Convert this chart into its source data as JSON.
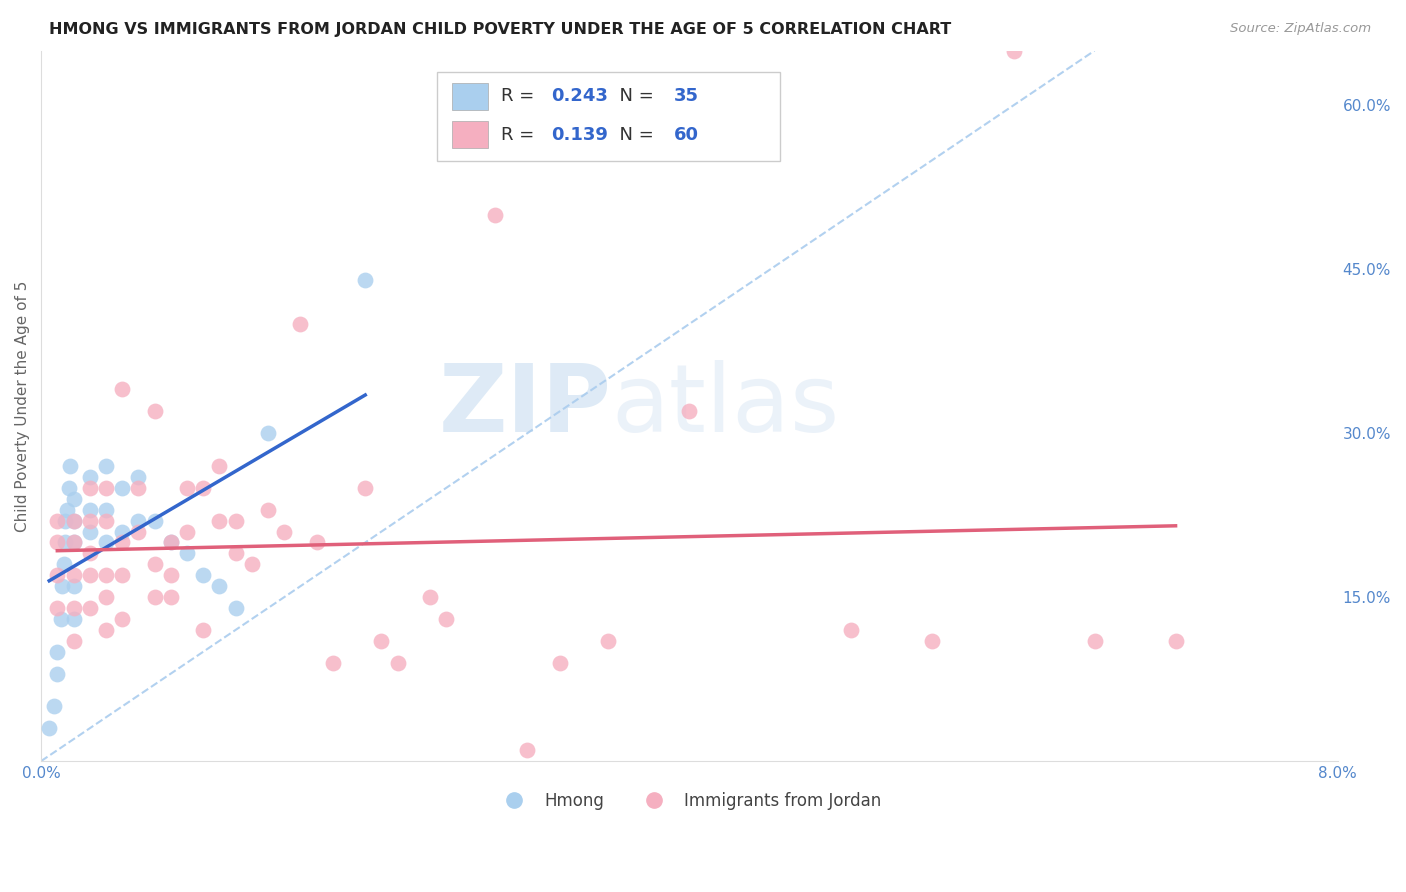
{
  "title": "HMONG VS IMMIGRANTS FROM JORDAN CHILD POVERTY UNDER THE AGE OF 5 CORRELATION CHART",
  "source": "Source: ZipAtlas.com",
  "ylabel": "Child Poverty Under the Age of 5",
  "xlim": [
    0.0,
    0.08
  ],
  "ylim": [
    0.0,
    0.65
  ],
  "hmong_R": 0.243,
  "hmong_N": 35,
  "jordan_R": 0.139,
  "jordan_N": 60,
  "hmong_color": "#aacfee",
  "jordan_color": "#f5afc0",
  "hmong_line_color": "#3366cc",
  "jordan_line_color": "#e0607a",
  "dash_color": "#aaccee",
  "background_color": "#ffffff",
  "grid_color": "#cccccc",
  "hmong_x": [
    0.0005,
    0.0008,
    0.001,
    0.001,
    0.0012,
    0.0013,
    0.0014,
    0.0015,
    0.0015,
    0.0016,
    0.0017,
    0.0018,
    0.002,
    0.002,
    0.002,
    0.002,
    0.002,
    0.003,
    0.003,
    0.003,
    0.004,
    0.004,
    0.004,
    0.005,
    0.005,
    0.006,
    0.006,
    0.007,
    0.008,
    0.009,
    0.01,
    0.011,
    0.012,
    0.014,
    0.02
  ],
  "hmong_y": [
    0.03,
    0.05,
    0.08,
    0.1,
    0.13,
    0.16,
    0.18,
    0.2,
    0.22,
    0.23,
    0.25,
    0.27,
    0.13,
    0.16,
    0.2,
    0.22,
    0.24,
    0.21,
    0.23,
    0.26,
    0.2,
    0.23,
    0.27,
    0.21,
    0.25,
    0.22,
    0.26,
    0.22,
    0.2,
    0.19,
    0.17,
    0.16,
    0.14,
    0.3,
    0.44
  ],
  "jordan_x": [
    0.001,
    0.001,
    0.001,
    0.001,
    0.002,
    0.002,
    0.002,
    0.002,
    0.002,
    0.003,
    0.003,
    0.003,
    0.003,
    0.003,
    0.004,
    0.004,
    0.004,
    0.004,
    0.004,
    0.005,
    0.005,
    0.005,
    0.005,
    0.006,
    0.006,
    0.007,
    0.007,
    0.007,
    0.008,
    0.008,
    0.008,
    0.009,
    0.009,
    0.01,
    0.01,
    0.011,
    0.011,
    0.012,
    0.012,
    0.013,
    0.014,
    0.015,
    0.016,
    0.017,
    0.018,
    0.02,
    0.021,
    0.022,
    0.024,
    0.025,
    0.028,
    0.03,
    0.032,
    0.035,
    0.04,
    0.05,
    0.055,
    0.06,
    0.065,
    0.07
  ],
  "jordan_y": [
    0.14,
    0.17,
    0.2,
    0.22,
    0.11,
    0.14,
    0.17,
    0.2,
    0.22,
    0.14,
    0.17,
    0.19,
    0.22,
    0.25,
    0.12,
    0.15,
    0.17,
    0.22,
    0.25,
    0.13,
    0.17,
    0.2,
    0.34,
    0.21,
    0.25,
    0.15,
    0.18,
    0.32,
    0.15,
    0.17,
    0.2,
    0.21,
    0.25,
    0.12,
    0.25,
    0.22,
    0.27,
    0.19,
    0.22,
    0.18,
    0.23,
    0.21,
    0.4,
    0.2,
    0.09,
    0.25,
    0.11,
    0.09,
    0.15,
    0.13,
    0.5,
    0.01,
    0.09,
    0.11,
    0.32,
    0.12,
    0.11,
    0.65,
    0.11,
    0.11
  ],
  "watermark_zip": "ZIP",
  "watermark_atlas": "atlas",
  "x_major_ticks": [
    0.0,
    0.01,
    0.02,
    0.03,
    0.04,
    0.05,
    0.06,
    0.07,
    0.08
  ]
}
